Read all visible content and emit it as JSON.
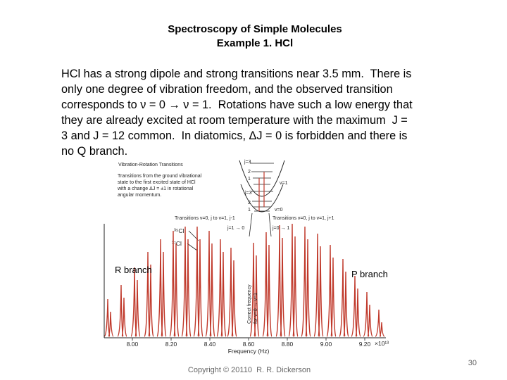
{
  "title": [
    "Spectroscopy of Simple Molecules",
    "Example 1. HCl"
  ],
  "paragraph": [
    "HCl has a strong dipole and strong transitions near 3.5 mm.  There is",
    "only one degree of vibration freedom, and the observed transition",
    "corresponds to ν = 0 → ν = 1.  Rotations have such a low energy that",
    "they are already excited at room temperature with the maximum  J =",
    "3 and J = 12 common.  In diatomics, ΔJ = 0 is forbidden and there is",
    "no Q branch."
  ],
  "figure": {
    "heading": "Vibration-Rotation Transitions",
    "caption": [
      "Transitions from the ground vibrational",
      "state to the first excited state of HCl",
      "with a change ΔJ = ±1 in rotational",
      "angular momentum."
    ],
    "upper_levels": [
      "j=3",
      "2",
      "1"
    ],
    "lower_levels": [
      "j=3",
      "2",
      "1"
    ],
    "state_upper": "v=1",
    "state_lower": "v=0",
    "r_transitions": "Transitions v=0, j to v=1, j-1",
    "p_transitions": "Transitions v=0, j to v=1, j+1",
    "r_first": "j=1 → 0",
    "p_first": "j=0 → 1",
    "isotope_35": "³⁵Cl",
    "isotope_37": "³⁷Cl",
    "r_branch": "R branch",
    "p_branch": "P branch",
    "center_label": [
      "Correct frequency",
      "for v=0 → v=1"
    ],
    "x_ticks": [
      "8.00",
      "8.20",
      "8.40",
      "8.60",
      "8.80",
      "9.00",
      "9.20"
    ],
    "x_exponent": "×10¹³",
    "x_label": "Frequency (Hz)"
  },
  "footer": {
    "copyright": "Copyright © 20110  R. R. Dickerson",
    "page": "30"
  }
}
